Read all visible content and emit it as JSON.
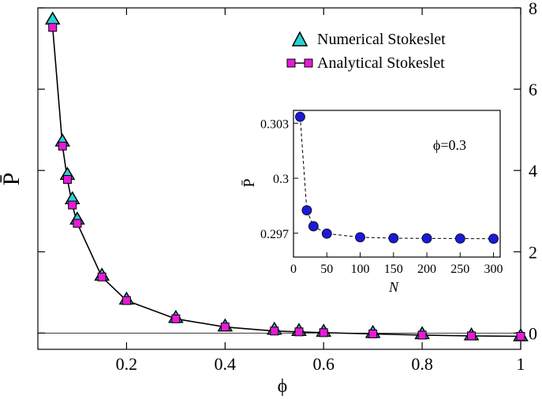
{
  "chart_data": [
    {
      "type": "line",
      "title": "",
      "xlabel": "ϕ",
      "ylabel": "P̄",
      "xlim": [
        0.02,
        1.0
      ],
      "ylim": [
        -0.4,
        8.0
      ],
      "x_ticks": [
        0.2,
        0.4,
        0.6,
        0.8,
        1.0
      ],
      "x_tick_labels": [
        "0.2",
        "0.4",
        "0.6",
        "0.8",
        "1"
      ],
      "y_ticks": [
        0,
        2,
        4,
        6,
        8
      ],
      "y_tick_labels": [
        "0",
        "2",
        "4",
        "6",
        "8"
      ],
      "y_axis_side": "right",
      "reference_line_y": 0,
      "grid": false,
      "legend_position": "top-right",
      "series": [
        {
          "name": "Numerical Stokeslet",
          "marker": "triangle",
          "color": "#28d2d2",
          "line": false,
          "x": [
            0.05,
            0.07,
            0.08,
            0.09,
            0.1,
            0.15,
            0.2,
            0.3,
            0.4,
            0.5,
            0.55,
            0.6,
            0.7,
            0.8,
            0.9,
            1.0
          ],
          "y": [
            7.72,
            4.72,
            3.9,
            3.3,
            2.8,
            1.42,
            0.83,
            0.38,
            0.17,
            0.09,
            0.06,
            0.04,
            0.01,
            -0.02,
            -0.05,
            -0.07
          ]
        },
        {
          "name": "Analytical Stokeslet",
          "marker": "square",
          "color": "#e81ad8",
          "line": true,
          "x": [
            0.05,
            0.07,
            0.08,
            0.09,
            0.1,
            0.15,
            0.2,
            0.3,
            0.4,
            0.5,
            0.55,
            0.6,
            0.7,
            0.8,
            0.9,
            1.0
          ],
          "y": [
            7.52,
            4.6,
            3.78,
            3.15,
            2.7,
            1.38,
            0.8,
            0.35,
            0.15,
            0.05,
            0.03,
            0.01,
            -0.02,
            -0.05,
            -0.07,
            -0.08
          ]
        }
      ]
    },
    {
      "type": "line",
      "title": "",
      "xlabel": "N",
      "ylabel": "P̄",
      "xlim": [
        0,
        310
      ],
      "ylim": [
        0.2957,
        0.3037
      ],
      "x_ticks": [
        0,
        50,
        100,
        150,
        200,
        250,
        300
      ],
      "x_tick_labels": [
        "0",
        "50",
        "100",
        "150",
        "200",
        "250",
        "300"
      ],
      "y_ticks": [
        0.297,
        0.3,
        0.303
      ],
      "y_tick_labels": [
        "0.297",
        "0.3",
        "0.303"
      ],
      "annotation": "ϕ=0.3",
      "grid": false,
      "series": [
        {
          "marker": "circle",
          "color": "#1a1ad6",
          "line_style": "dashed",
          "x": [
            10,
            20,
            30,
            50,
            100,
            150,
            200,
            250,
            300
          ],
          "y": [
            0.30335,
            0.29825,
            0.29738,
            0.29698,
            0.29678,
            0.29673,
            0.29672,
            0.29671,
            0.2967
          ]
        }
      ]
    }
  ]
}
